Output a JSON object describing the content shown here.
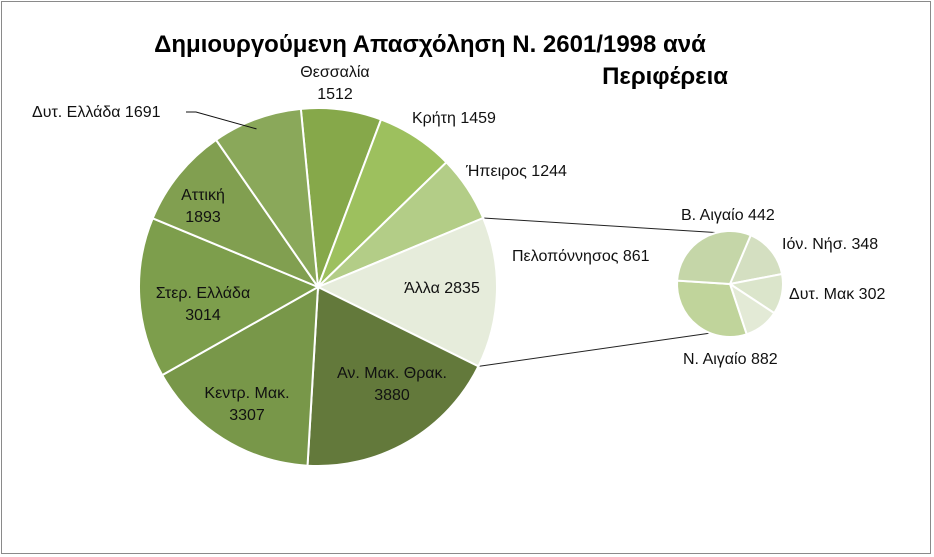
{
  "chart_data": {
    "type": "pie",
    "subtype": "pie-of-pie",
    "title_line1": "Δημιουργούμενη Απασχόληση Ν. 2601/1998 ανά",
    "title_line2": "Περιφέρεια",
    "main_pie": [
      {
        "label": "Θεσσαλία",
        "value": 1512,
        "text": "1512",
        "color": "#86a84a"
      },
      {
        "label": "Κρήτη",
        "value": 1459,
        "text": "Κρήτη 1459",
        "color": "#9dc05e"
      },
      {
        "label": "Ήπειρος",
        "value": 1244,
        "text": "Ήπειρος 1244",
        "color": "#b3cd87"
      },
      {
        "label": "Άλλα",
        "value": 2835,
        "text": "Άλλα 2835",
        "color": "#e6ecdb"
      },
      {
        "label": "Αν. Μακ. Θρακ.",
        "value": 3880,
        "text": "3880",
        "color": "#63793b"
      },
      {
        "label": "Κεντρ. Μακ.",
        "value": 3307,
        "text": "3307",
        "color": "#789749"
      },
      {
        "label": "Στερ. Ελλάδα",
        "value": 3014,
        "text": "3014",
        "color": "#7d9e4c"
      },
      {
        "label": "Αττική",
        "value": 1893,
        "text": "1893",
        "color": "#819f50"
      },
      {
        "label": "Δυτ. Ελλάδα",
        "value": 1691,
        "text": "Δυτ. Ελλάδα 1691",
        "color": "#8aa85a"
      }
    ],
    "secondary_pie": [
      {
        "label": "Β. Αιγαίο",
        "value": 442,
        "text": "Β. Αιγαίο 442",
        "color": "#d4dfc1"
      },
      {
        "label": "Ιόν. Νήσ.",
        "value": 348,
        "text": "Ιόν. Νήσ. 348",
        "color": "#dbe5cb"
      },
      {
        "label": "Δυτ. Μακ",
        "value": 302,
        "text": "Δυτ. Μακ 302",
        "color": "#e3ead6"
      },
      {
        "label": "Ν. Αιγαίο",
        "value": 882,
        "text": "Ν. Αιγαίο 882",
        "color": "#c0d49b"
      },
      {
        "label": "Πελοπόννησος",
        "value": 861,
        "text": "Πελοπόννησος 861",
        "color": "#c5d6a8"
      }
    ],
    "multiline_labels": {
      "Θεσσαλία": "Θεσσαλία",
      "Αν. Μακ. Θρακ.": "Αν. Μακ. Θρακ.",
      "Κεντρ. Μακ.": "Κεντρ. Μακ.",
      "Στερ. Ελλάδα": "Στερ. Ελλάδα",
      "Αττική": "Αττική"
    },
    "legend": "none"
  }
}
